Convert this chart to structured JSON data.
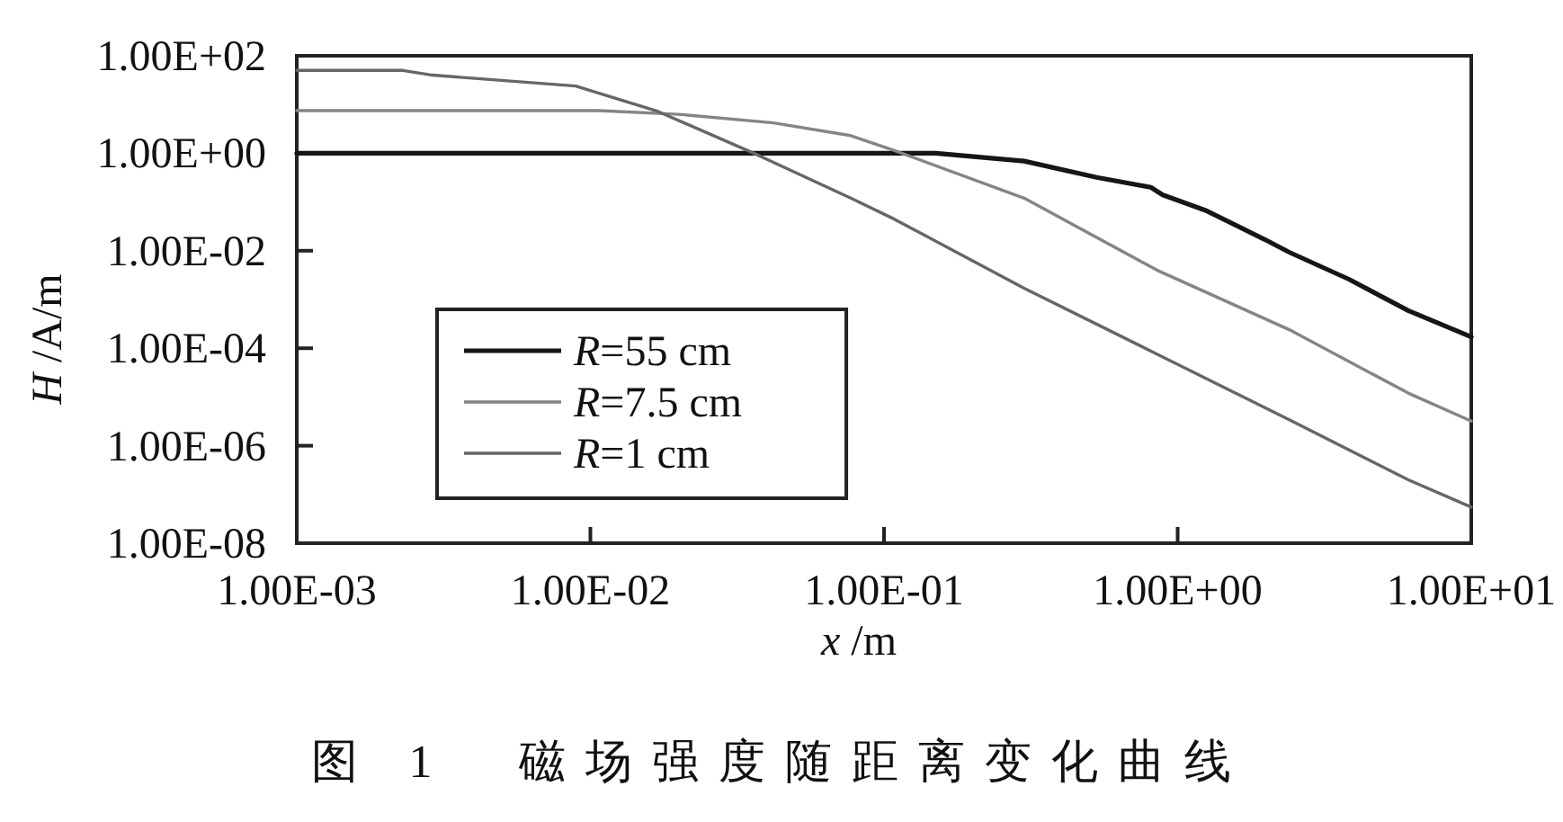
{
  "chart_data": {
    "type": "line",
    "title": "图 1　磁场强度随距离变化曲线",
    "xlabel": "x /m",
    "ylabel": "H /A/m",
    "log": "xy",
    "xlim": [
      0.001,
      10
    ],
    "ylim": [
      1e-08,
      100
    ],
    "xticks": [
      {
        "value": 0.001,
        "label": "1.00E-03"
      },
      {
        "value": 0.01,
        "label": "1.00E-02"
      },
      {
        "value": 0.1,
        "label": "1.00E-01"
      },
      {
        "value": 1,
        "label": "1.00E+00"
      },
      {
        "value": 10,
        "label": "1.00E+01"
      }
    ],
    "yticks": [
      {
        "value": 1e-08,
        "label": "1.00E-08"
      },
      {
        "value": 1e-06,
        "label": "1.00E-06"
      },
      {
        "value": 0.0001,
        "label": "1.00E-04"
      },
      {
        "value": 0.01,
        "label": "1.00E-02"
      },
      {
        "value": 1,
        "label": "1.00E+00"
      },
      {
        "value": 100,
        "label": "1.00E+02"
      }
    ],
    "legend": "bottom left",
    "series": [
      {
        "name": "R=55 cm",
        "color": "#161616",
        "x": [
          0.001,
          0.15,
          0.3,
          0.53,
          0.81,
          0.89,
          1.24,
          1.98,
          2.4,
          3.83,
          6.1,
          10
        ],
        "values": [
          1,
          1,
          0.69,
          0.32,
          0.2,
          0.14,
          0.068,
          0.017,
          0.0093,
          0.0026,
          0.00059,
          0.00017
        ]
      },
      {
        "name": "R=7.5 cm",
        "color": "#858585",
        "x": [
          0.001,
          0.0107,
          0.02,
          0.042,
          0.077,
          0.108,
          0.3,
          0.85,
          2.4,
          6.1,
          10
        ],
        "values": [
          7.5,
          7.5,
          6.3,
          4.2,
          2.3,
          1.15,
          0.12,
          0.004,
          0.00024,
          1.2e-05,
          3.2e-06
        ]
      },
      {
        "name": "R=1 cm",
        "color": "#666666",
        "x": [
          0.001,
          0.0023,
          0.0029,
          0.0089,
          0.017,
          0.036,
          0.042,
          0.077,
          0.108,
          0.3,
          0.85,
          2.4,
          6.1,
          10
        ],
        "values": [
          50,
          50,
          40,
          24,
          7.2,
          1.0,
          0.65,
          0.12,
          0.045,
          0.0017,
          7.6e-05,
          3.4e-06,
          2e-07,
          5.5e-08
        ]
      }
    ]
  }
}
